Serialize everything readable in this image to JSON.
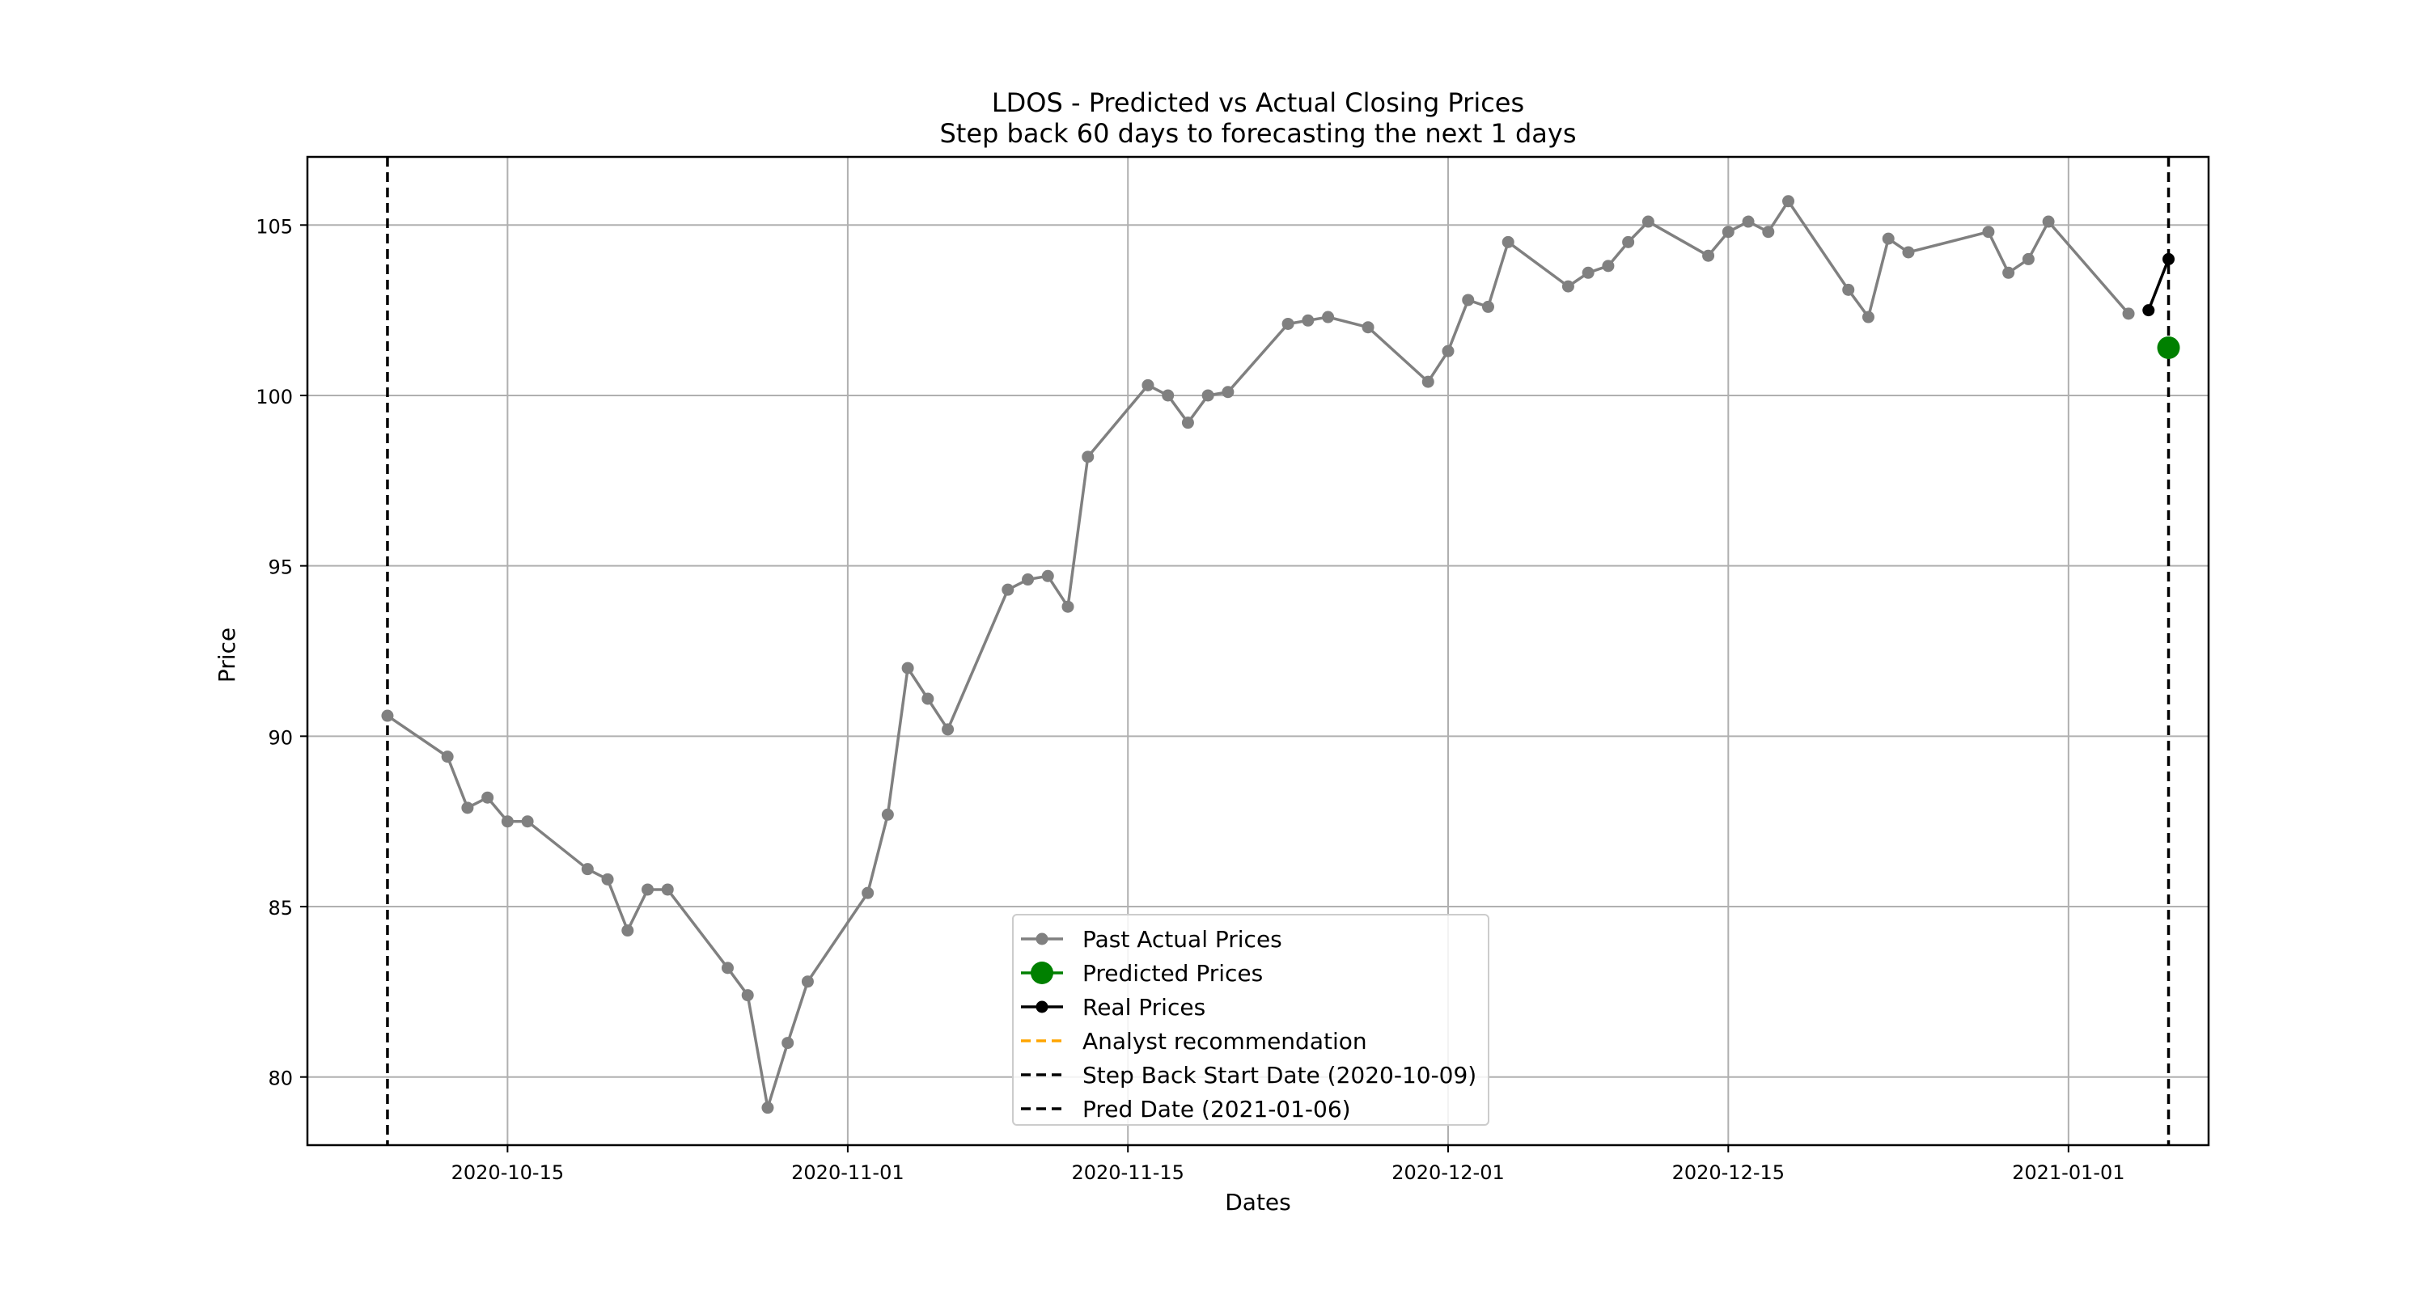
{
  "chart_data": {
    "type": "line",
    "title": "LDOS - Predicted vs Actual Closing Prices",
    "subtitle": "Step back 60 days to forecasting the next 1 days",
    "xlabel": "Dates",
    "ylabel": "Price",
    "x_range": [
      "2020-10-05",
      "2021-01-08"
    ],
    "ylim": [
      78,
      107
    ],
    "grid": true,
    "legend_position": "lower-center",
    "x_ticks": [
      "2020-10-15",
      "2020-11-01",
      "2020-11-15",
      "2020-12-01",
      "2020-12-15",
      "2021-01-01"
    ],
    "y_ticks": [
      80,
      85,
      90,
      95,
      100,
      105
    ],
    "series": [
      {
        "name": "Past Actual Prices",
        "color": "#808080",
        "points": [
          [
            "2020-10-09",
            90.6
          ],
          [
            "2020-10-12",
            89.4
          ],
          [
            "2020-10-13",
            87.9
          ],
          [
            "2020-10-14",
            88.2
          ],
          [
            "2020-10-15",
            87.5
          ],
          [
            "2020-10-16",
            87.5
          ],
          [
            "2020-10-19",
            86.1
          ],
          [
            "2020-10-20",
            85.8
          ],
          [
            "2020-10-21",
            84.3
          ],
          [
            "2020-10-22",
            85.5
          ],
          [
            "2020-10-23",
            85.5
          ],
          [
            "2020-10-26",
            83.2
          ],
          [
            "2020-10-27",
            82.4
          ],
          [
            "2020-10-28",
            79.1
          ],
          [
            "2020-10-29",
            81.0
          ],
          [
            "2020-10-30",
            82.8
          ],
          [
            "2020-11-02",
            85.4
          ],
          [
            "2020-11-03",
            87.7
          ],
          [
            "2020-11-04",
            92.0
          ],
          [
            "2020-11-05",
            91.1
          ],
          [
            "2020-11-06",
            90.2
          ],
          [
            "2020-11-09",
            94.3
          ],
          [
            "2020-11-10",
            94.6
          ],
          [
            "2020-11-11",
            94.7
          ],
          [
            "2020-11-12",
            93.8
          ],
          [
            "2020-11-13",
            98.2
          ],
          [
            "2020-11-16",
            100.3
          ],
          [
            "2020-11-17",
            100.0
          ],
          [
            "2020-11-18",
            99.2
          ],
          [
            "2020-11-19",
            100.0
          ],
          [
            "2020-11-20",
            100.1
          ],
          [
            "2020-11-23",
            102.1
          ],
          [
            "2020-11-24",
            102.2
          ],
          [
            "2020-11-25",
            102.3
          ],
          [
            "2020-11-27",
            102.0
          ],
          [
            "2020-11-30",
            100.4
          ],
          [
            "2020-12-01",
            101.3
          ],
          [
            "2020-12-02",
            102.8
          ],
          [
            "2020-12-03",
            102.6
          ],
          [
            "2020-12-04",
            104.5
          ],
          [
            "2020-12-07",
            103.2
          ],
          [
            "2020-12-08",
            103.6
          ],
          [
            "2020-12-09",
            103.8
          ],
          [
            "2020-12-10",
            104.5
          ],
          [
            "2020-12-11",
            105.1
          ],
          [
            "2020-12-14",
            104.1
          ],
          [
            "2020-12-15",
            104.8
          ],
          [
            "2020-12-16",
            105.1
          ],
          [
            "2020-12-17",
            104.8
          ],
          [
            "2020-12-18",
            105.7
          ],
          [
            "2020-12-21",
            103.1
          ],
          [
            "2020-12-22",
            102.3
          ],
          [
            "2020-12-23",
            104.6
          ],
          [
            "2020-12-24",
            104.2
          ],
          [
            "2020-12-28",
            104.8
          ],
          [
            "2020-12-29",
            103.6
          ],
          [
            "2020-12-30",
            104.0
          ],
          [
            "2020-12-31",
            105.1
          ],
          [
            "2021-01-04",
            102.4
          ]
        ]
      },
      {
        "name": "Predicted Prices",
        "color": "#008000",
        "points": [
          [
            "2021-01-06",
            101.4
          ]
        ]
      },
      {
        "name": "Real Prices",
        "color": "#000000",
        "points": [
          [
            "2021-01-05",
            102.5
          ],
          [
            "2021-01-06",
            104.0
          ]
        ]
      },
      {
        "name": "Analyst recommendation",
        "color": "#FFA500",
        "points": []
      }
    ],
    "vertical_lines": [
      {
        "name": "Step Back Start Date (2020-10-09)",
        "x": "2020-10-09",
        "color": "#000000"
      },
      {
        "name": "Pred Date (2021-01-06)",
        "x": "2021-01-06",
        "color": "#000000"
      }
    ]
  }
}
